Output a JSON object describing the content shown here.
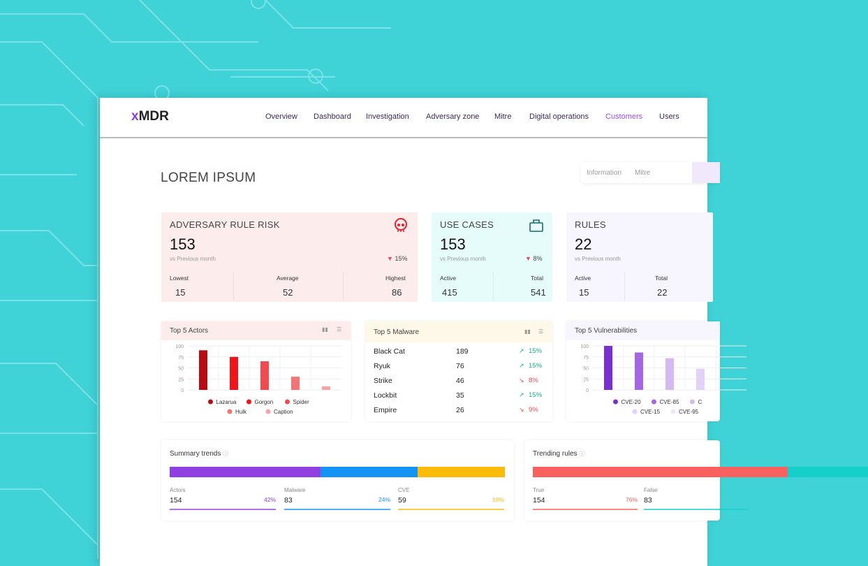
{
  "colors": {
    "background": "#3fd2d7",
    "accent": "#8a3fe0"
  },
  "brand": {
    "prefix": "x",
    "name": "MDR"
  },
  "nav": [
    "Overview",
    "Dashboard",
    "Investigation",
    "Adversary zone",
    "Mitre",
    "Digital operations",
    "Customers",
    "Users"
  ],
  "nav_active": "Customers",
  "page_title": "LOREM IPSUM",
  "tabs": [
    "Information",
    "Mitre"
  ],
  "cards": {
    "risk": {
      "title": "ADVERSARY RULE RISK",
      "icon": "skull-icon",
      "value": "153",
      "sub": "vs Previous month",
      "change": "15%",
      "trend": "down",
      "stats": [
        {
          "label": "Lowest",
          "value": "15"
        },
        {
          "label": "Average",
          "value": "52"
        },
        {
          "label": "Highest",
          "value": "86"
        }
      ]
    },
    "usecases": {
      "title": "USE CASES",
      "icon": "briefcase-icon",
      "value": "153",
      "sub": "vs Previous month",
      "change": "8%",
      "trend": "down",
      "stats": [
        {
          "label": "Active",
          "value": "415"
        },
        {
          "label": "Total",
          "value": "541"
        }
      ]
    },
    "rules": {
      "title": "RULES",
      "value": "22",
      "sub": "vs Previous month",
      "stats": [
        {
          "label": "Active",
          "value": "15"
        },
        {
          "label": "Total",
          "value": "22"
        }
      ]
    }
  },
  "malware": {
    "title": "Top 5 Malware",
    "rows": [
      {
        "name": "Black Cat",
        "count": "189",
        "change": "15%",
        "trend": "up"
      },
      {
        "name": "Ryuk",
        "count": "76",
        "change": "15%",
        "trend": "up"
      },
      {
        "name": "Strike",
        "count": "46",
        "change": "8%",
        "trend": "down"
      },
      {
        "name": "Lockbit",
        "count": "35",
        "change": "15%",
        "trend": "up"
      },
      {
        "name": "Empire",
        "count": "26",
        "change": "9%",
        "trend": "down"
      }
    ]
  },
  "chart_data": [
    {
      "type": "bar",
      "title": "Top 5 Actors",
      "categories": [
        "Lazarua",
        "Gorgon",
        "Spider",
        "Hulk",
        "Caption"
      ],
      "values": [
        90,
        75,
        65,
        30,
        8
      ],
      "colors": [
        "#b50d12",
        "#f0141b",
        "#f24a4e",
        "#f47476",
        "#f7a3a4"
      ],
      "ylim": [
        0,
        100
      ],
      "yticks": [
        "0",
        "25",
        "50",
        "75",
        "100"
      ],
      "grid": true,
      "legend": "bottom"
    },
    {
      "type": "bar",
      "title": "Top 5 Vulnerabilities",
      "categories": [
        "CVE-20",
        "CVE-85",
        "C",
        "CVE-15",
        "CVE-95"
      ],
      "values": [
        100,
        85,
        72,
        48,
        null
      ],
      "colors": [
        "#7a2fd0",
        "#a566e6",
        "#d6b8f2",
        "#e3d2f7",
        "#efe6fb"
      ],
      "ylim": [
        0,
        100
      ],
      "yticks": [
        "0",
        "25",
        "50",
        "75",
        "100"
      ],
      "grid": true,
      "legend": "bottom"
    }
  ],
  "summary": {
    "title": "Summary trends",
    "items": [
      {
        "label": "Actors",
        "value": "154",
        "pct": "42%",
        "color": "#9040e0",
        "share": 45
      },
      {
        "label": "Malware",
        "value": "83",
        "pct": "24%",
        "color": "#1493f5",
        "share": 29
      },
      {
        "label": "CVE",
        "value": "59",
        "pct": "10%",
        "color": "#fbbb08",
        "share": 26
      }
    ]
  },
  "trending": {
    "title": "Trending rules",
    "items": [
      {
        "label": "True",
        "value": "154",
        "pct": "76%",
        "color": "#f96060",
        "share": 76
      },
      {
        "label": "False",
        "value": "83",
        "color": "#15cfc8",
        "share": 24
      }
    ]
  }
}
